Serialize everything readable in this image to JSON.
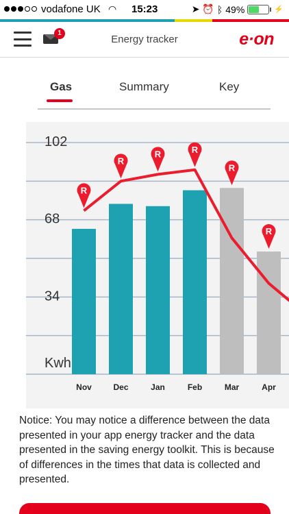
{
  "status_bar": {
    "carrier": "vodafone UK",
    "time": "15:23",
    "battery_percent": "49%",
    "battery_level": 0.49,
    "icons": [
      "wifi-icon",
      "location-arrow-icon",
      "alarm-icon",
      "bluetooth-icon",
      "charging-icon"
    ]
  },
  "brand_colors": {
    "red": "#e3001b",
    "turquoise": "#1ea2b1",
    "yellow": "#e9d800",
    "bar_actual": "#1ea2b1",
    "bar_estimate": "#bebebe",
    "line": "#ea1c2d"
  },
  "header": {
    "title": "Energy tracker",
    "logo": "e·on",
    "mail_badge": "1"
  },
  "tabs": [
    {
      "label": "Gas",
      "active": true
    },
    {
      "label": "Summary",
      "active": false
    },
    {
      "label": "Key",
      "active": false
    }
  ],
  "chart_data": {
    "type": "bar",
    "unit_label": "Kwh",
    "y_ticks": [
      "102",
      "68",
      "34"
    ],
    "ylim": [
      0,
      102
    ],
    "categories": [
      "Nov",
      "Dec",
      "Jan",
      "Feb",
      "Mar",
      "Apr"
    ],
    "series": [
      {
        "kind": "bar",
        "values": [
          64,
          75,
          74,
          81,
          82,
          54
        ],
        "estimated": [
          false,
          false,
          false,
          false,
          true,
          true
        ]
      },
      {
        "kind": "line",
        "values": [
          72,
          85,
          88,
          90,
          60,
          40
        ]
      }
    ],
    "marker_label": "R",
    "grid": true
  },
  "notice": "Notice: You may notice a difference between the data presented in your app energy tracker and the data presented in the saving energy toolkit. This is because of differences in the times that data is collected and presented."
}
